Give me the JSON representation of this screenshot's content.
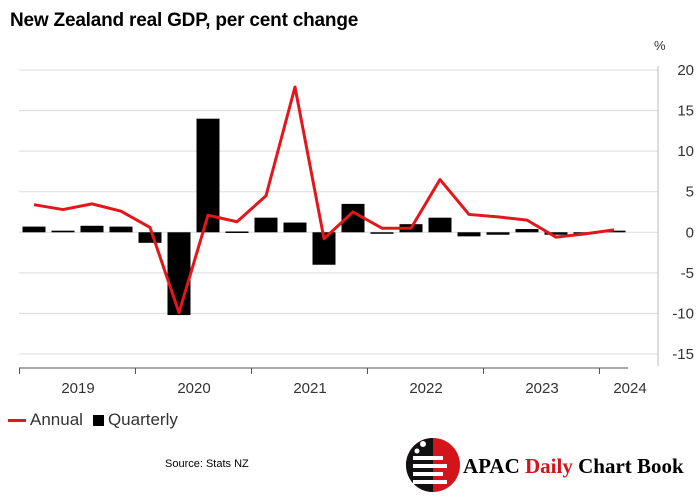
{
  "chart_data": {
    "type": "bar+line",
    "title": "New Zealand real GDP, per cent change",
    "ylabel": "%",
    "ylim": [
      -15,
      20
    ],
    "yticks": [
      "20",
      "15",
      "10",
      "5",
      "0",
      "-5",
      "-10",
      "-15"
    ],
    "ytick_values": [
      20,
      15,
      10,
      5,
      0,
      -5,
      -10,
      -15
    ],
    "year_labels": [
      "2019",
      "2020",
      "2021",
      "2022",
      "2023",
      "2024"
    ],
    "quarters": [
      "2019 Q1",
      "2019 Q2",
      "2019 Q3",
      "2019 Q4",
      "2020 Q1",
      "2020 Q2",
      "2020 Q3",
      "2020 Q4",
      "2021 Q1",
      "2021 Q2",
      "2021 Q3",
      "2021 Q4",
      "2022 Q1",
      "2022 Q2",
      "2022 Q3",
      "2022 Q4",
      "2023 Q1",
      "2023 Q2",
      "2023 Q3",
      "2023 Q4",
      "2024 Q1"
    ],
    "series": [
      {
        "name": "Annual",
        "type": "line",
        "color": "#e3161c",
        "values": [
          3.4,
          2.8,
          3.5,
          2.6,
          0.6,
          -9.9,
          2.1,
          1.3,
          4.5,
          17.9,
          -0.8,
          2.5,
          0.5,
          0.5,
          6.5,
          2.2,
          1.9,
          1.5,
          -0.6,
          -0.2,
          0.3
        ]
      },
      {
        "name": "Quarterly",
        "type": "bar",
        "color": "#000000",
        "values": [
          0.7,
          0.2,
          0.8,
          0.7,
          -1.3,
          -10.2,
          14.0,
          0.1,
          1.8,
          1.2,
          -4.0,
          3.5,
          -0.1,
          1.0,
          1.8,
          -0.5,
          -0.3,
          0.4,
          -0.3,
          -0.1,
          0.2
        ]
      }
    ],
    "legend": [
      "Annual",
      "Quarterly"
    ],
    "legend_position": "bottom-left"
  },
  "footer": {
    "source": "Source: Stats NZ",
    "brand_prefix": "APAC",
    "brand_middle": "Daily",
    "brand_suffix": "Chart Book"
  }
}
